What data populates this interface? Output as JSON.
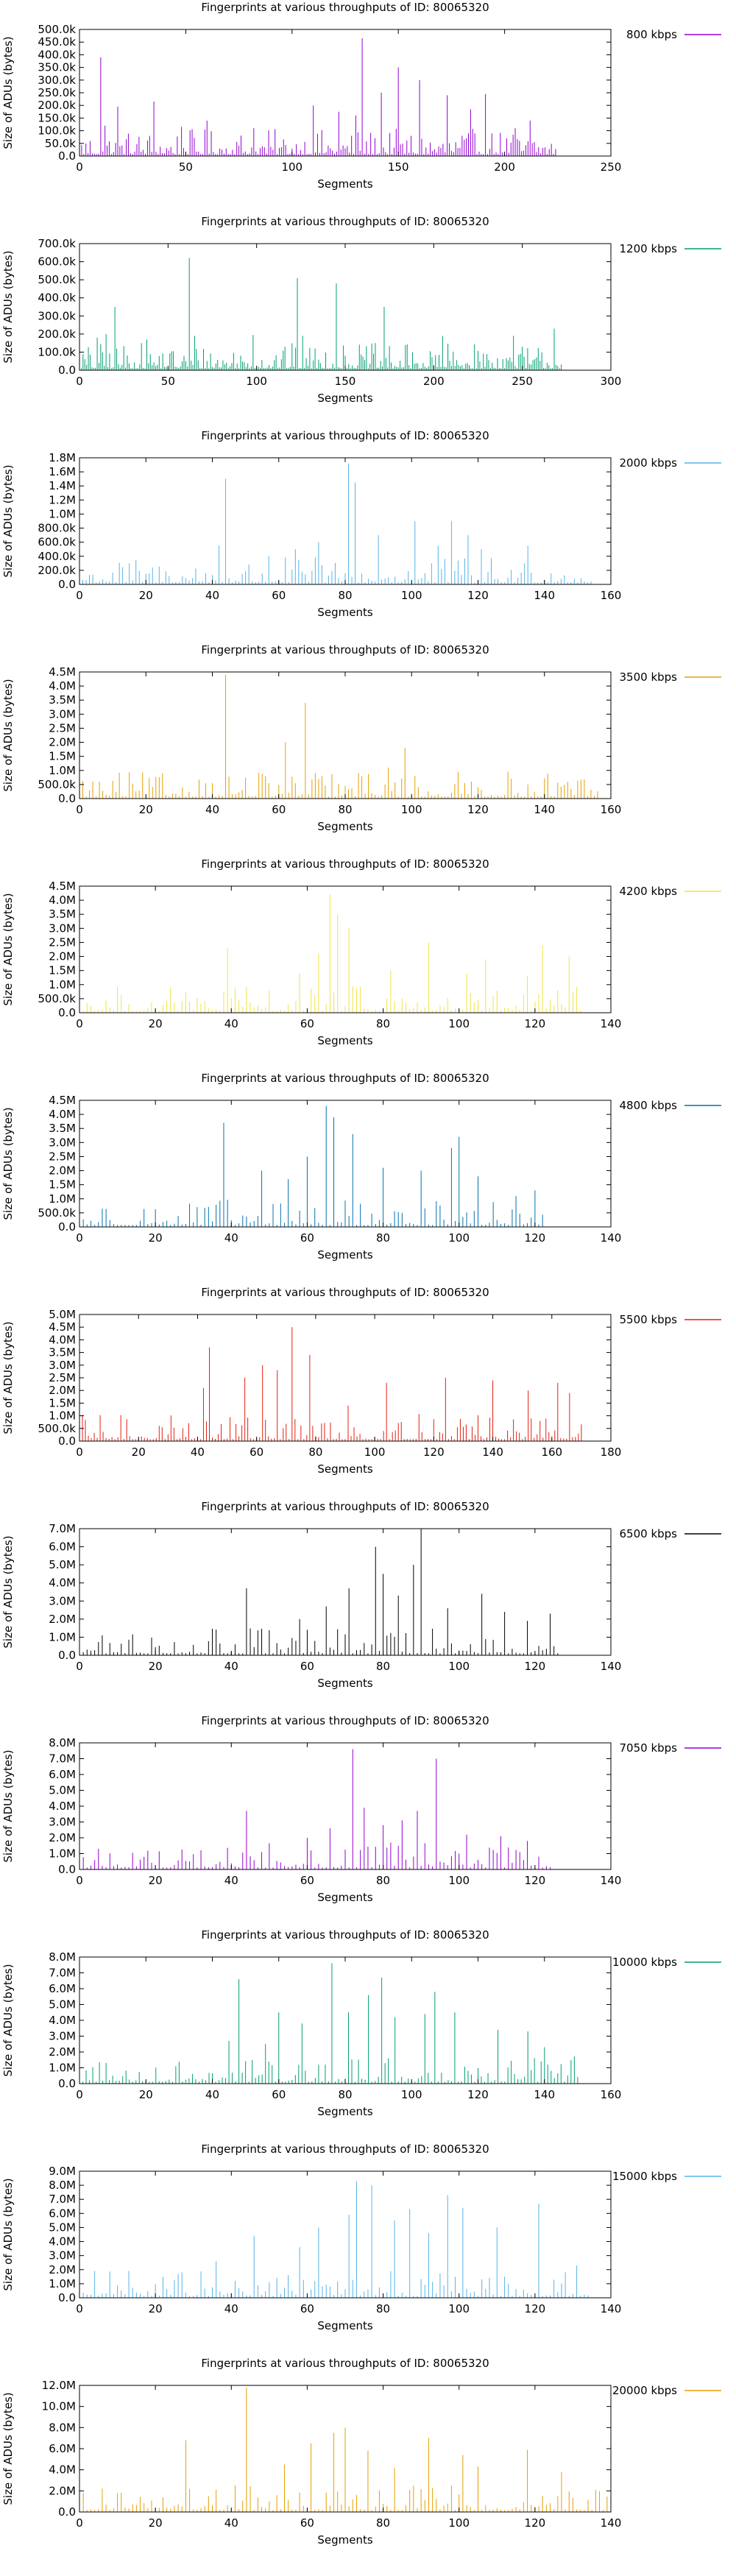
{
  "page": {
    "background": "#ffffff"
  },
  "chart_data": [
    {
      "type": "bar",
      "title": "Fingerprints at various throughputs of ID: 80065320",
      "xlabel": "Segments",
      "ylabel": "Size of ADUs (bytes)",
      "legend": "800 kbps",
      "color": "#9400d3",
      "xlim": [
        0,
        250
      ],
      "xticks": [
        0,
        50,
        100,
        150,
        200,
        250
      ],
      "ylim": [
        0,
        500000
      ],
      "ytick_labels": [
        "0.0",
        "50.0k",
        "100.0k",
        "150.0k",
        "200.0k",
        "250.0k",
        "300.0k",
        "350.0k",
        "400.0k",
        "450.0k",
        "500.0k"
      ],
      "n_segments": 224,
      "peaks": [
        [
          10,
          390000
        ],
        [
          12,
          120000
        ],
        [
          18,
          195000
        ],
        [
          35,
          215000
        ],
        [
          48,
          115000
        ],
        [
          60,
          140000
        ],
        [
          82,
          110000
        ],
        [
          110,
          200000
        ],
        [
          122,
          175000
        ],
        [
          130,
          160000
        ],
        [
          133,
          465000
        ],
        [
          142,
          250000
        ],
        [
          150,
          350000
        ],
        [
          160,
          300000
        ],
        [
          173,
          240000
        ],
        [
          184,
          185000
        ],
        [
          191,
          245000
        ],
        [
          205,
          110000
        ],
        [
          212,
          140000
        ]
      ]
    },
    {
      "type": "bar",
      "title": "Fingerprints at various throughputs of ID: 80065320",
      "xlabel": "Segments",
      "ylabel": "Size of ADUs (bytes)",
      "legend": "1200 kbps",
      "color": "#009e73",
      "xlim": [
        0,
        300
      ],
      "xticks": [
        0,
        50,
        100,
        150,
        200,
        250,
        300
      ],
      "ylim": [
        0,
        700000
      ],
      "ytick_labels": [
        "0.0",
        "100.0k",
        "200.0k",
        "300.0k",
        "400.0k",
        "500.0k",
        "600.0k",
        "700.0k"
      ],
      "n_segments": 272,
      "peaks": [
        [
          10,
          180000
        ],
        [
          15,
          200000
        ],
        [
          20,
          350000
        ],
        [
          38,
          170000
        ],
        [
          62,
          620000
        ],
        [
          65,
          190000
        ],
        [
          98,
          195000
        ],
        [
          123,
          510000
        ],
        [
          126,
          190000
        ],
        [
          145,
          480000
        ],
        [
          172,
          350000
        ],
        [
          205,
          190000
        ],
        [
          245,
          190000
        ],
        [
          268,
          230000
        ]
      ]
    },
    {
      "type": "bar",
      "title": "Fingerprints at various throughputs of ID: 80065320",
      "xlabel": "Segments",
      "ylabel": "Size of ADUs (bytes)",
      "legend": "2000 kbps",
      "color": "#56b4e9",
      "xlim": [
        0,
        160
      ],
      "xticks": [
        0,
        20,
        40,
        60,
        80,
        100,
        120,
        140,
        160
      ],
      "ylim": [
        0,
        1800000
      ],
      "ytick_labels": [
        "0.0",
        "200.0k",
        "400.0k",
        "600.0k",
        "800.0k",
        "1.0M",
        "1.2M",
        "1.4M",
        "1.6M",
        "1.8M"
      ],
      "n_segments": 154,
      "peaks": [
        [
          42,
          550000
        ],
        [
          44,
          1500000
        ],
        [
          57,
          400000
        ],
        [
          65,
          500000
        ],
        [
          72,
          600000
        ],
        [
          81,
          1720000
        ],
        [
          83,
          1450000
        ],
        [
          90,
          700000
        ],
        [
          101,
          900000
        ],
        [
          108,
          550000
        ],
        [
          112,
          900000
        ],
        [
          117,
          700000
        ],
        [
          121,
          500000
        ],
        [
          135,
          550000
        ]
      ]
    },
    {
      "type": "bar",
      "title": "Fingerprints at various throughputs of ID: 80065320",
      "xlabel": "Segments",
      "ylabel": "Size of ADUs (bytes)",
      "legend": "3500 kbps",
      "color": "#e69f00",
      "xlim": [
        0,
        160
      ],
      "xticks": [
        0,
        20,
        40,
        60,
        80,
        100,
        120,
        140,
        160
      ],
      "ylim": [
        0,
        4500000
      ],
      "ytick_labels": [
        "0.0",
        "500.0k",
        "1.0M",
        "1.5M",
        "2.0M",
        "2.5M",
        "3.0M",
        "3.5M",
        "4.0M",
        "4.5M"
      ],
      "n_segments": 156,
      "peaks": [
        [
          44,
          4400000
        ],
        [
          56,
          800000
        ],
        [
          62,
          2000000
        ],
        [
          68,
          3400000
        ],
        [
          72,
          700000
        ],
        [
          84,
          900000
        ],
        [
          93,
          1100000
        ],
        [
          98,
          1800000
        ],
        [
          118,
          600000
        ],
        [
          135,
          500000
        ]
      ]
    },
    {
      "type": "bar",
      "title": "Fingerprints at various throughputs of ID: 80065320",
      "xlabel": "Segments",
      "ylabel": "Size of ADUs (bytes)",
      "legend": "4200 kbps",
      "color": "#f0e442",
      "xlim": [
        0,
        140
      ],
      "xticks": [
        0,
        20,
        40,
        60,
        80,
        100,
        120,
        140
      ],
      "ylim": [
        0,
        4500000
      ],
      "ytick_labels": [
        "0.0",
        "500.0k",
        "1.0M",
        "1.5M",
        "2.0M",
        "2.5M",
        "3.0M",
        "3.5M",
        "4.0M",
        "4.5M"
      ],
      "n_segments": 132,
      "peaks": [
        [
          39,
          2300000
        ],
        [
          58,
          1400000
        ],
        [
          63,
          2100000
        ],
        [
          66,
          4200000
        ],
        [
          68,
          3500000
        ],
        [
          71,
          3000000
        ],
        [
          82,
          1500000
        ],
        [
          92,
          2500000
        ],
        [
          102,
          1400000
        ],
        [
          107,
          1900000
        ],
        [
          118,
          1300000
        ],
        [
          122,
          2400000
        ],
        [
          129,
          2000000
        ]
      ]
    },
    {
      "type": "bar",
      "title": "Fingerprints at various throughputs of ID: 80065320",
      "xlabel": "Segments",
      "ylabel": "Size of ADUs (bytes)",
      "legend": "4800 kbps",
      "color": "#0072b2",
      "xlim": [
        0,
        140
      ],
      "xticks": [
        0,
        20,
        40,
        60,
        80,
        100,
        120,
        140
      ],
      "ylim": [
        0,
        4500000
      ],
      "ytick_labels": [
        "0.0",
        "500.0k",
        "1.0M",
        "1.5M",
        "2.0M",
        "2.5M",
        "3.0M",
        "3.5M",
        "4.0M",
        "4.5M"
      ],
      "n_segments": 122,
      "peaks": [
        [
          38,
          3700000
        ],
        [
          48,
          2000000
        ],
        [
          55,
          1700000
        ],
        [
          60,
          2500000
        ],
        [
          65,
          4300000
        ],
        [
          67,
          3900000
        ],
        [
          72,
          3300000
        ],
        [
          80,
          2100000
        ],
        [
          90,
          2000000
        ],
        [
          98,
          2800000
        ],
        [
          100,
          3200000
        ],
        [
          105,
          1800000
        ],
        [
          115,
          1100000
        ],
        [
          120,
          1300000
        ]
      ]
    },
    {
      "type": "bar",
      "title": "Fingerprints at various throughputs of ID: 80065320",
      "xlabel": "Segments",
      "ylabel": "Size of ADUs (bytes)",
      "legend": "5500 kbps",
      "color": "#e51e10",
      "xlim": [
        0,
        180
      ],
      "xticks": [
        0,
        20,
        40,
        60,
        80,
        100,
        120,
        140,
        160,
        180
      ],
      "ylim": [
        0,
        5000000
      ],
      "ytick_labels": [
        "0.0",
        "500.0k",
        "1.0M",
        "1.5M",
        "2.0M",
        "2.5M",
        "3.0M",
        "3.5M",
        "4.0M",
        "4.5M",
        "5.0M"
      ],
      "n_segments": 170,
      "peaks": [
        [
          42,
          2100000
        ],
        [
          44,
          3700000
        ],
        [
          56,
          2500000
        ],
        [
          62,
          3000000
        ],
        [
          67,
          2800000
        ],
        [
          72,
          4500000
        ],
        [
          78,
          3400000
        ],
        [
          91,
          1400000
        ],
        [
          104,
          2300000
        ],
        [
          124,
          2500000
        ],
        [
          140,
          2400000
        ],
        [
          152,
          2000000
        ],
        [
          162,
          2300000
        ],
        [
          166,
          1900000
        ]
      ]
    },
    {
      "type": "bar",
      "title": "Fingerprints at various throughputs of ID: 80065320",
      "xlabel": "Segments",
      "ylabel": "Size of ADUs (bytes)",
      "legend": "6500 kbps",
      "color": "#000000",
      "xlim": [
        0,
        140
      ],
      "xticks": [
        0,
        20,
        40,
        60,
        80,
        100,
        120,
        140
      ],
      "ylim": [
        0,
        7000000
      ],
      "ytick_labels": [
        "0.0",
        "1.0M",
        "2.0M",
        "3.0M",
        "4.0M",
        "5.0M",
        "6.0M",
        "7.0M"
      ],
      "n_segments": 126,
      "peaks": [
        [
          44,
          3700000
        ],
        [
          58,
          2000000
        ],
        [
          65,
          2700000
        ],
        [
          71,
          3700000
        ],
        [
          78,
          6000000
        ],
        [
          80,
          4500000
        ],
        [
          84,
          3300000
        ],
        [
          88,
          5000000
        ],
        [
          90,
          7000000
        ],
        [
          97,
          2600000
        ],
        [
          106,
          3400000
        ],
        [
          112,
          2400000
        ],
        [
          118,
          1900000
        ],
        [
          124,
          2300000
        ]
      ]
    },
    {
      "type": "bar",
      "title": "Fingerprints at various throughputs of ID: 80065320",
      "xlabel": "Segments",
      "ylabel": "Size of ADUs (bytes)",
      "legend": "7050 kbps",
      "color": "#9400d3",
      "xlim": [
        0,
        140
      ],
      "xticks": [
        0,
        20,
        40,
        60,
        80,
        100,
        120,
        140
      ],
      "ylim": [
        0,
        8000000
      ],
      "ytick_labels": [
        "0.0",
        "1.0M",
        "2.0M",
        "3.0M",
        "4.0M",
        "5.0M",
        "6.0M",
        "7.0M",
        "8.0M"
      ],
      "n_segments": 124,
      "peaks": [
        [
          44,
          3700000
        ],
        [
          60,
          2000000
        ],
        [
          66,
          2600000
        ],
        [
          72,
          7600000
        ],
        [
          75,
          3900000
        ],
        [
          80,
          2800000
        ],
        [
          85,
          3100000
        ],
        [
          89,
          3700000
        ],
        [
          94,
          7000000
        ],
        [
          102,
          2200000
        ],
        [
          111,
          2100000
        ],
        [
          118,
          1800000
        ]
      ]
    },
    {
      "type": "bar",
      "title": "Fingerprints at various throughputs of ID: 80065320",
      "xlabel": "Segments",
      "ylabel": "Size of ADUs (bytes)",
      "legend": "10000 kbps",
      "color": "#009e73",
      "xlim": [
        0,
        160
      ],
      "xticks": [
        0,
        20,
        40,
        60,
        80,
        100,
        120,
        140,
        160
      ],
      "ylim": [
        0,
        8000000
      ],
      "ytick_labels": [
        "0.0",
        "1.0M",
        "2.0M",
        "3.0M",
        "4.0M",
        "5.0M",
        "6.0M",
        "7.0M",
        "8.0M"
      ],
      "n_segments": 150,
      "peaks": [
        [
          45,
          2700000
        ],
        [
          48,
          6600000
        ],
        [
          56,
          2500000
        ],
        [
          60,
          4500000
        ],
        [
          67,
          3800000
        ],
        [
          76,
          7600000
        ],
        [
          81,
          4500000
        ],
        [
          87,
          5600000
        ],
        [
          91,
          6700000
        ],
        [
          95,
          4200000
        ],
        [
          104,
          4400000
        ],
        [
          107,
          5800000
        ],
        [
          113,
          4500000
        ],
        [
          126,
          3400000
        ],
        [
          135,
          3300000
        ],
        [
          140,
          2300000
        ]
      ]
    },
    {
      "type": "bar",
      "title": "Fingerprints at various throughputs of ID: 80065320",
      "xlabel": "Segments",
      "ylabel": "Size of ADUs (bytes)",
      "legend": "15000 kbps",
      "color": "#56b4e9",
      "xlim": [
        0,
        140
      ],
      "xticks": [
        0,
        20,
        40,
        60,
        80,
        100,
        120,
        140
      ],
      "ylim": [
        0,
        9000000
      ],
      "ytick_labels": [
        "0.0",
        "1.0M",
        "2.0M",
        "3.0M",
        "4.0M",
        "5.0M",
        "6.0M",
        "7.0M",
        "8.0M",
        "9.0M"
      ],
      "n_segments": 134,
      "peaks": [
        [
          36,
          2600000
        ],
        [
          46,
          4400000
        ],
        [
          58,
          3600000
        ],
        [
          63,
          5000000
        ],
        [
          71,
          5900000
        ],
        [
          73,
          8300000
        ],
        [
          77,
          8000000
        ],
        [
          83,
          5500000
        ],
        [
          87,
          6300000
        ],
        [
          92,
          4600000
        ],
        [
          97,
          7300000
        ],
        [
          101,
          6400000
        ],
        [
          110,
          5000000
        ],
        [
          121,
          6700000
        ],
        [
          131,
          2300000
        ]
      ]
    },
    {
      "type": "bar",
      "title": "Fingerprints at various throughputs of ID: 80065320",
      "xlabel": "Segments",
      "ylabel": "Size of ADUs (bytes)",
      "legend": "20000 kbps",
      "color": "#e69f00",
      "xlim": [
        0,
        140
      ],
      "xticks": [
        0,
        20,
        40,
        60,
        80,
        100,
        120,
        140
      ],
      "ylim": [
        0,
        12000000
      ],
      "ytick_labels": [
        "0.0",
        "2.0M",
        "4.0M",
        "6.0M",
        "8.0M",
        "10.0M",
        "12.0M"
      ],
      "n_segments": 140,
      "peaks": [
        [
          28,
          6800000
        ],
        [
          44,
          11800000
        ],
        [
          54,
          4500000
        ],
        [
          61,
          6500000
        ],
        [
          67,
          7500000
        ],
        [
          70,
          8000000
        ],
        [
          76,
          5800000
        ],
        [
          83,
          4200000
        ],
        [
          92,
          7000000
        ],
        [
          101,
          5400000
        ],
        [
          105,
          4300000
        ],
        [
          118,
          5900000
        ],
        [
          127,
          3800000
        ],
        [
          136,
          2100000
        ]
      ]
    }
  ]
}
